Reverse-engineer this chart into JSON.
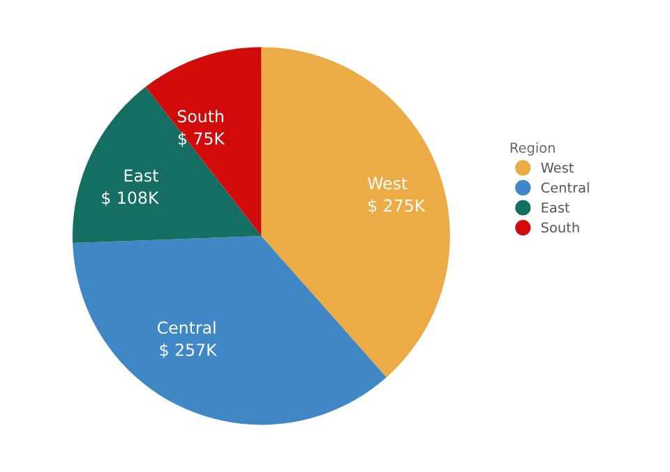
{
  "chart_data": {
    "type": "pie",
    "legend_title": "Region",
    "legend": "right",
    "categories": [
      "West",
      "Central",
      "East",
      "South"
    ],
    "values": [
      275,
      257,
      108,
      75
    ],
    "value_labels": [
      "$ 275K",
      "$ 257K",
      "$ 108K",
      "$ 75K"
    ],
    "colors": [
      "#ecab45",
      "#3f88c5",
      "#146e61",
      "#d10a0a"
    ]
  }
}
